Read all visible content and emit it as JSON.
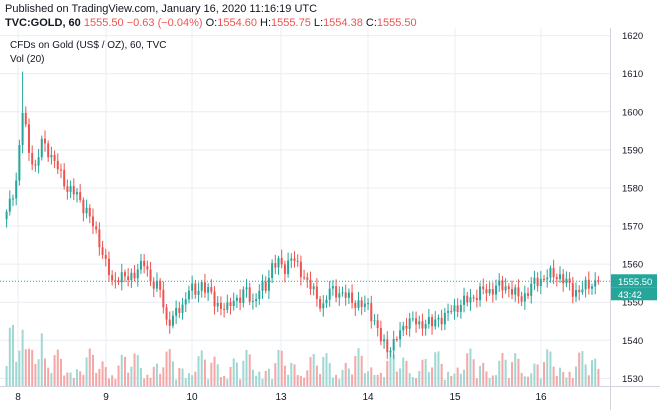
{
  "header": {
    "published": "Published on TradingView.com, January 16, 2020 11:16:19 UTC",
    "symbol": "TVC:GOLD, 60",
    "last": "1555.50",
    "change": "−0.63 (−0.04%)",
    "o_label": "O:",
    "o_value": "1554.60",
    "h_label": "H:",
    "h_value": "1555.75",
    "l_label": "L:",
    "l_value": "1554.38",
    "c_label": "C:",
    "c_value": "1555.50"
  },
  "legend": {
    "series": "CFDs on Gold (US$ / OZ), 60, TVC",
    "volume": "Vol (20)"
  },
  "price_tag": {
    "value": "1555.50",
    "countdown": "43:42"
  },
  "colors": {
    "up": "#26a69a",
    "down": "#ef5350",
    "vol_up": "#9fd8d3",
    "vol_down": "#f4a7a6",
    "grid": "#e8ecf2",
    "axis_text": "#131722",
    "last_line": "#26a69a"
  },
  "chart_data": {
    "type": "candlestick",
    "ylim": [
      1528,
      1622
    ],
    "y_ticks": [
      1530,
      1540,
      1550,
      1560,
      1570,
      1580,
      1590,
      1600,
      1610,
      1620
    ],
    "x_ticks": [
      "8",
      "9",
      "10",
      "13",
      "14",
      "15",
      "16"
    ],
    "last_price": 1555.5,
    "anchors": [
      [
        0,
        1573
      ],
      [
        3,
        1582
      ],
      [
        5,
        1600
      ],
      [
        7,
        1590
      ],
      [
        9,
        1585
      ],
      [
        11,
        1592
      ],
      [
        13,
        1590
      ],
      [
        16,
        1585
      ],
      [
        19,
        1580
      ],
      [
        22,
        1578
      ],
      [
        25,
        1574
      ],
      [
        27,
        1570
      ],
      [
        29,
        1566
      ],
      [
        31,
        1560
      ],
      [
        33,
        1555
      ],
      [
        35,
        1557
      ],
      [
        38,
        1556
      ],
      [
        40,
        1558
      ],
      [
        43,
        1560
      ],
      [
        45,
        1556
      ],
      [
        48,
        1553
      ],
      [
        50,
        1545
      ],
      [
        52,
        1546
      ],
      [
        55,
        1549
      ],
      [
        57,
        1554
      ],
      [
        59,
        1552
      ],
      [
        61,
        1555
      ],
      [
        63,
        1553
      ],
      [
        65,
        1550
      ],
      [
        67,
        1549
      ],
      [
        69,
        1548
      ],
      [
        71,
        1551
      ],
      [
        73,
        1551
      ],
      [
        75,
        1553
      ],
      [
        77,
        1550
      ],
      [
        79,
        1553
      ],
      [
        81,
        1554
      ],
      [
        83,
        1560
      ],
      [
        85,
        1560
      ],
      [
        87,
        1559
      ],
      [
        89,
        1562
      ],
      [
        91,
        1559
      ],
      [
        93,
        1557
      ],
      [
        95,
        1554
      ],
      [
        97,
        1551
      ],
      [
        99,
        1549
      ],
      [
        101,
        1553
      ],
      [
        103,
        1553
      ],
      [
        105,
        1552
      ],
      [
        107,
        1551
      ],
      [
        109,
        1550
      ],
      [
        111,
        1549
      ],
      [
        113,
        1549
      ],
      [
        115,
        1545
      ],
      [
        117,
        1540
      ],
      [
        119,
        1538
      ],
      [
        121,
        1539
      ],
      [
        123,
        1542
      ],
      [
        125,
        1545
      ],
      [
        127,
        1545
      ],
      [
        129,
        1544
      ],
      [
        131,
        1545
      ],
      [
        133,
        1544
      ],
      [
        135,
        1546
      ],
      [
        137,
        1546
      ],
      [
        139,
        1548
      ],
      [
        141,
        1549
      ],
      [
        143,
        1550
      ],
      [
        145,
        1551
      ],
      [
        147,
        1552
      ],
      [
        149,
        1553
      ],
      [
        151,
        1553
      ],
      [
        153,
        1554
      ],
      [
        155,
        1554
      ],
      [
        157,
        1554
      ],
      [
        159,
        1552
      ],
      [
        161,
        1551
      ],
      [
        163,
        1553
      ],
      [
        165,
        1555
      ],
      [
        167,
        1556
      ],
      [
        169,
        1557
      ],
      [
        171,
        1557
      ],
      [
        173,
        1557
      ],
      [
        175,
        1555
      ],
      [
        177,
        1553
      ],
      [
        179,
        1553
      ],
      [
        181,
        1554
      ],
      [
        183,
        1555
      ],
      [
        185,
        1555.5
      ]
    ]
  }
}
